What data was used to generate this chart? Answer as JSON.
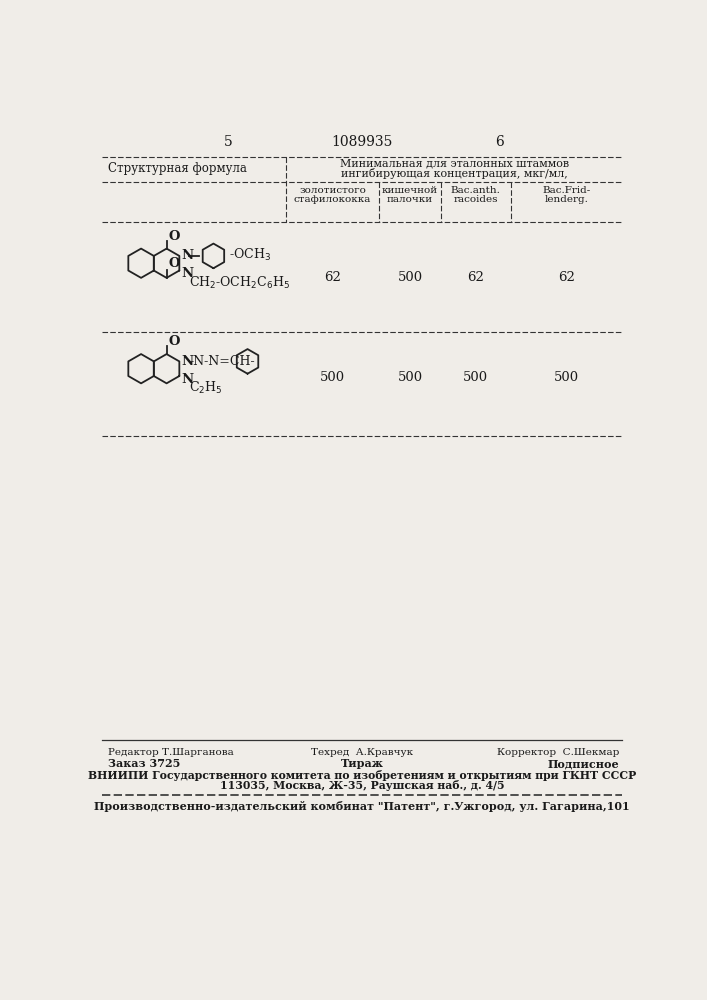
{
  "page_number_left": "5",
  "page_number_center": "1089935",
  "page_number_right": "6",
  "col_header_left": "Структурная формула",
  "col_header_right_line1": "Минимальная для эталонных штаммов",
  "col_header_right_line2": "ингибирующая концентрация, мкг/мл,",
  "subcol1_line1": "золотистого",
  "subcol1_line2": "стафилококка",
  "subcol2_line1": "кишечной",
  "subcol2_line2": "палочки",
  "subcol3_line1": "Bac.anth.",
  "subcol3_line2": "racoides",
  "subcol4_line1": "Bac.Frid-",
  "subcol4_line2": "lenderg.",
  "row1_vals": [
    "62",
    "500",
    "62",
    "62"
  ],
  "row2_vals": [
    "500",
    "500",
    "500",
    "500"
  ],
  "footer_line1_left": "Редактор Т.Шарганова",
  "footer_line1_mid": "Техред  А.Кравчук",
  "footer_line1_right": "Корректор  С.Шекмар",
  "footer_line2_left": "Заказ 3725",
  "footer_line2_mid": "Тираж",
  "footer_line2_right": "Подписное",
  "footer_line3": "ВНИИПИ Государственного комитета по изобретениям и открытиям при ГКНТ СССР",
  "footer_line4": "113035, Москва, Ж-35, Раушская наб., д. 4/5",
  "footer_line5": "Производственно-издательский комбинат \"Патент\", г.Ужгород, ул. Гагарина,101",
  "bg_color": "#f0ede8",
  "text_color": "#1a1a1a",
  "line_color": "#333333"
}
